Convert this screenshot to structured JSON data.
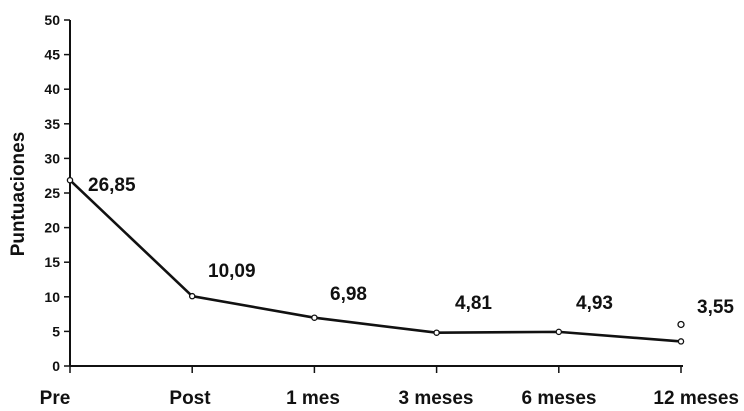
{
  "chart_data": {
    "type": "line",
    "categories": [
      "Pre",
      "Post",
      "1 mes",
      "3 meses",
      "6 meses",
      "12 meses"
    ],
    "series": [
      {
        "values": [
          26.85,
          10.09,
          6.98,
          4.81,
          4.93,
          3.55
        ],
        "labels": [
          "26,85",
          "10,09",
          "6,98",
          "4,81",
          "4,93",
          "3,55"
        ]
      }
    ],
    "extra_marker": {
      "x": "12 meses",
      "y": 6
    },
    "ylabel": "Puntuaciones",
    "ylim": [
      0,
      50
    ],
    "yticks": [
      {
        "value": 0,
        "label": "0"
      },
      {
        "value": 5,
        "label": "5"
      },
      {
        "value": 10,
        "label": "10"
      },
      {
        "value": 15,
        "label": "15"
      },
      {
        "value": 20,
        "label": "20"
      },
      {
        "value": 25,
        "label": "25"
      },
      {
        "value": 30,
        "label": "30"
      },
      {
        "value": 35,
        "label": "35"
      },
      {
        "value": 40,
        "label": "40"
      },
      {
        "value": 45,
        "label": "45"
      },
      {
        "value": 50,
        "label": "50"
      }
    ],
    "grid": false,
    "legend": "none",
    "colors": {
      "line": "#111111",
      "marker_fill": "#ffffff"
    }
  }
}
